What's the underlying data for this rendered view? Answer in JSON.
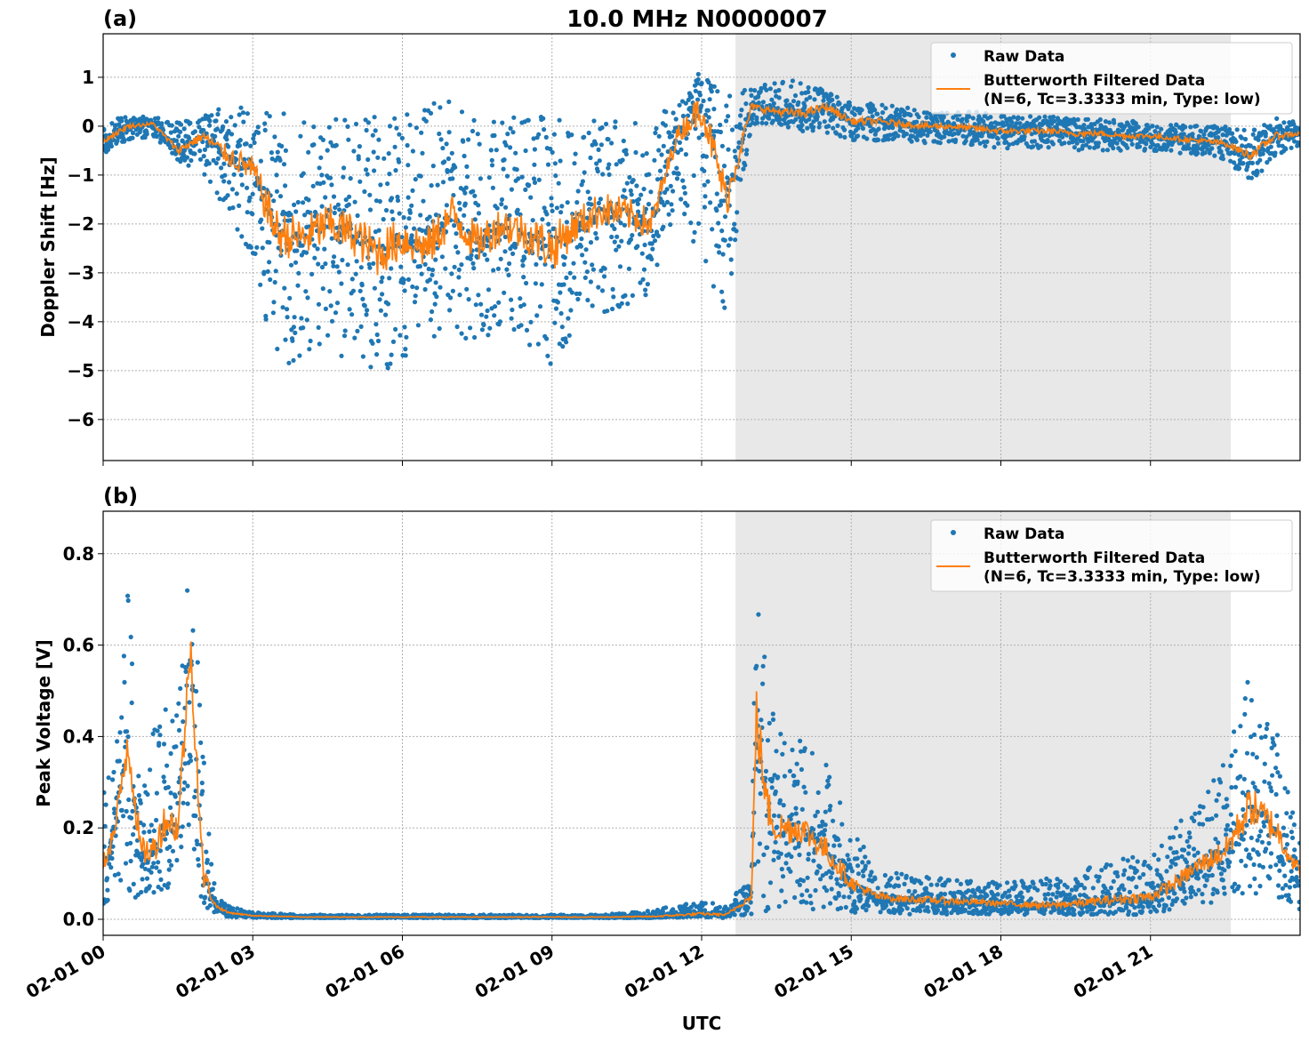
{
  "title": "10.0 MHz N0000007",
  "colors": {
    "raw": "#1f77b4",
    "filtered": "#ff7f0e",
    "shade": "#e8e8e8"
  },
  "chart_data": [
    {
      "type": "scatter",
      "panel_label": "(a)",
      "ylabel": "Doppler Shift [Hz]",
      "xlabel": "",
      "xlim_hours": [
        0,
        24
      ],
      "ylim": [
        -6.84,
        1.89
      ],
      "yticks": [
        1,
        0,
        -1,
        -2,
        -3,
        -4,
        -5,
        -6
      ],
      "ytick_labels": [
        "1",
        "0",
        "−1",
        "−2",
        "−3",
        "−4",
        "−5",
        "−6"
      ],
      "grid": true,
      "legend_placement": "top-right",
      "legend": [
        "Raw Data",
        "Butterworth Filtered Data",
        "(N=6, Tc=3.3333 min, Type: low)"
      ],
      "shaded_span_hours": [
        12.68,
        22.61
      ],
      "series": [
        {
          "name": "Butterworth Filtered Data (N=6, Tc=3.3333 min, Type: low)",
          "kind": "line",
          "x": [
            0,
            0.5,
            1,
            1.5,
            2,
            2.5,
            3,
            3.5,
            4,
            4.5,
            5,
            5.5,
            6,
            6.5,
            7,
            7.5,
            8,
            8.5,
            9,
            9.5,
            10,
            10.5,
            11,
            11.5,
            12,
            12.5,
            13,
            13.5,
            14,
            14.5,
            15,
            15.5,
            16,
            16.5,
            17,
            17.5,
            18,
            18.5,
            19,
            19.5,
            20,
            20.5,
            21,
            21.5,
            22,
            22.5,
            23,
            23.5,
            24
          ],
          "y": [
            -0.3,
            0.0,
            0.05,
            -0.5,
            -0.2,
            -0.6,
            -0.9,
            -2.2,
            -2.3,
            -2.0,
            -2.2,
            -2.6,
            -2.3,
            -2.5,
            -1.8,
            -2.4,
            -2.0,
            -2.2,
            -2.5,
            -2.0,
            -1.7,
            -1.8,
            -2.0,
            -0.2,
            0.4,
            -1.5,
            0.4,
            0.3,
            0.25,
            0.4,
            0.1,
            0.1,
            0.05,
            0.0,
            0.0,
            -0.05,
            -0.1,
            -0.1,
            -0.1,
            -0.15,
            -0.15,
            -0.2,
            -0.2,
            -0.25,
            -0.3,
            -0.35,
            -0.6,
            -0.2,
            -0.15
          ]
        },
        {
          "name": "Raw Data",
          "kind": "points-envelope",
          "x": [
            0,
            0.5,
            1,
            1.5,
            2,
            2.5,
            3,
            3.5,
            4,
            4.5,
            5,
            5.5,
            6,
            6.5,
            7,
            7.5,
            8,
            8.5,
            9,
            9.5,
            10,
            10.5,
            11,
            11.5,
            12,
            12.5,
            13,
            13.5,
            14,
            14.5,
            15,
            15.5,
            16,
            16.5,
            17,
            17.5,
            18,
            18.5,
            19,
            19.5,
            20,
            20.5,
            21,
            21.5,
            22,
            22.5,
            23,
            23.5,
            24
          ],
          "low": [
            -0.6,
            -0.3,
            -0.2,
            -0.7,
            -1.0,
            -1.8,
            -2.8,
            -5.0,
            -4.8,
            -4.6,
            -4.8,
            -5.2,
            -4.8,
            -4.5,
            -4.3,
            -4.4,
            -4.2,
            -4.4,
            -5.2,
            -4.0,
            -3.9,
            -3.8,
            -3.5,
            -1.5,
            -2.8,
            -3.8,
            0.0,
            0.05,
            -0.1,
            -0.2,
            -0.3,
            -0.3,
            -0.3,
            -0.35,
            -0.4,
            -0.4,
            -0.45,
            -0.45,
            -0.45,
            -0.5,
            -0.5,
            -0.5,
            -0.5,
            -0.55,
            -0.6,
            -0.7,
            -1.2,
            -0.6,
            -0.4
          ],
          "high": [
            0.1,
            0.2,
            0.2,
            0.1,
            0.2,
            0.5,
            0.4,
            0.3,
            0.2,
            0.3,
            0.1,
            0.2,
            0.2,
            0.5,
            0.5,
            0.2,
            0.2,
            0.2,
            0.4,
            0.0,
            0.2,
            0.0,
            0.2,
            0.5,
            1.2,
            0.6,
            0.8,
            0.9,
            1.0,
            0.7,
            0.5,
            0.45,
            0.4,
            0.35,
            0.3,
            0.3,
            0.25,
            0.2,
            0.2,
            0.15,
            0.15,
            0.1,
            0.1,
            0.05,
            0.0,
            0.0,
            -0.1,
            0.2,
            0.1
          ]
        }
      ]
    },
    {
      "type": "scatter",
      "panel_label": "(b)",
      "ylabel": "Peak Voltage [V]",
      "xlabel": "UTC",
      "xlim_hours": [
        0,
        24
      ],
      "ylim": [
        -0.035,
        0.893
      ],
      "yticks": [
        0.0,
        0.2,
        0.4,
        0.6,
        0.8
      ],
      "ytick_labels": [
        "0.0",
        "0.2",
        "0.4",
        "0.6",
        "0.8"
      ],
      "xtick_labels": [
        "02-01 00",
        "02-01 03",
        "02-01 06",
        "02-01 09",
        "02-01 12",
        "02-01 15",
        "02-01 18",
        "02-01 21"
      ],
      "xtick_hours": [
        0,
        3,
        6,
        9,
        12,
        15,
        18,
        21
      ],
      "grid": true,
      "legend_placement": "top-right",
      "legend": [
        "Raw Data",
        "Butterworth Filtered Data",
        "(N=6, Tc=3.3333 min, Type: low)"
      ],
      "shaded_span_hours": [
        12.68,
        22.61
      ],
      "series": [
        {
          "name": "Butterworth Filtered Data (N=6, Tc=3.3333 min, Type: low)",
          "kind": "line",
          "x": [
            0,
            0.25,
            0.5,
            0.75,
            1,
            1.25,
            1.5,
            1.75,
            2,
            2.25,
            2.5,
            3,
            4,
            5,
            6,
            7,
            8,
            9,
            10,
            11,
            12,
            12.5,
            13,
            13.1,
            13.3,
            13.5,
            14,
            14.5,
            15,
            15.5,
            16,
            17,
            18,
            19,
            20,
            21,
            21.5,
            22,
            22.5,
            23,
            23.5,
            24
          ],
          "y": [
            0.12,
            0.2,
            0.4,
            0.15,
            0.15,
            0.22,
            0.2,
            0.6,
            0.1,
            0.03,
            0.015,
            0.008,
            0.005,
            0.005,
            0.005,
            0.005,
            0.005,
            0.005,
            0.005,
            0.006,
            0.012,
            0.01,
            0.05,
            0.45,
            0.25,
            0.2,
            0.2,
            0.15,
            0.08,
            0.05,
            0.045,
            0.04,
            0.035,
            0.03,
            0.04,
            0.05,
            0.08,
            0.12,
            0.15,
            0.25,
            0.2,
            0.1
          ]
        },
        {
          "name": "Raw Data",
          "kind": "points-envelope",
          "x": [
            0,
            0.25,
            0.5,
            0.75,
            1,
            1.25,
            1.5,
            1.75,
            2,
            2.25,
            2.5,
            3,
            4,
            5,
            6,
            7,
            8,
            9,
            10,
            11,
            12,
            12.5,
            13,
            13.1,
            13.3,
            13.5,
            14,
            14.5,
            15,
            15.5,
            16,
            17,
            18,
            19,
            20,
            21,
            21.5,
            22,
            22.5,
            23,
            23.5,
            24
          ],
          "low": [
            0.03,
            0.05,
            0.05,
            0.04,
            0.05,
            0.06,
            0.08,
            0.2,
            0.02,
            0.01,
            0.005,
            0.003,
            0.003,
            0.003,
            0.003,
            0.003,
            0.003,
            0.003,
            0.003,
            0.003,
            0.005,
            0.003,
            0.01,
            0.1,
            0.01,
            0.01,
            0.02,
            0.02,
            0.01,
            0.01,
            0.01,
            0.01,
            0.01,
            0.01,
            0.01,
            0.01,
            0.02,
            0.03,
            0.04,
            0.05,
            0.05,
            0.02
          ],
          "high": [
            0.3,
            0.35,
            0.8,
            0.35,
            0.45,
            0.5,
            0.5,
            0.84,
            0.4,
            0.05,
            0.03,
            0.015,
            0.01,
            0.01,
            0.01,
            0.01,
            0.01,
            0.01,
            0.01,
            0.02,
            0.04,
            0.03,
            0.1,
            0.85,
            0.55,
            0.45,
            0.4,
            0.35,
            0.2,
            0.12,
            0.1,
            0.09,
            0.08,
            0.09,
            0.12,
            0.15,
            0.2,
            0.28,
            0.35,
            0.55,
            0.45,
            0.2
          ]
        }
      ]
    }
  ]
}
